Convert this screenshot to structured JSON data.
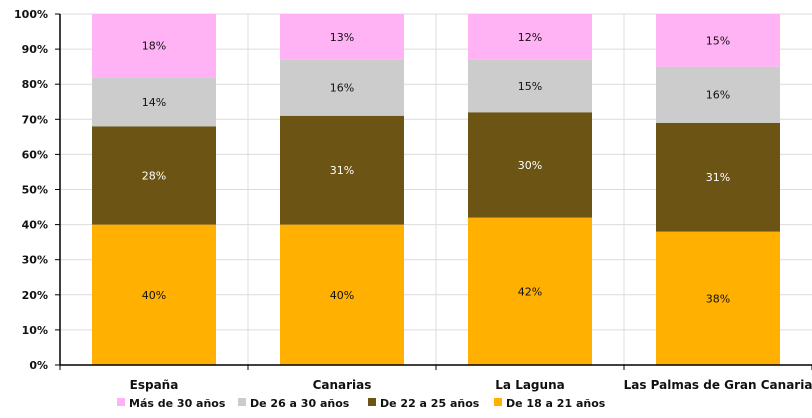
{
  "chart_data": {
    "type": "bar",
    "stacked": true,
    "percent": true,
    "categories": [
      "España",
      "Canarias",
      "La Laguna",
      "Las Palmas de Gran Canaria"
    ],
    "series": [
      {
        "name": "De 18 a 21 años",
        "values": [
          40,
          40,
          42,
          38
        ],
        "labels": [
          "40%",
          "40%",
          "42%",
          "38%"
        ],
        "color": "#FFB000"
      },
      {
        "name": "De 22 a 25 años",
        "values": [
          28,
          31,
          30,
          31
        ],
        "labels": [
          "28%",
          "31%",
          "30%",
          "31%"
        ],
        "color": "#6B5414"
      },
      {
        "name": "De 26 a 30 años",
        "values": [
          14,
          16,
          15,
          16
        ],
        "labels": [
          "14%",
          "16%",
          "15%",
          "16%"
        ],
        "color": "#CCCCCC"
      },
      {
        "name": "Más de 30 años",
        "values": [
          18,
          13,
          12,
          15
        ],
        "labels": [
          "18%",
          "13%",
          "12%",
          "15%"
        ],
        "color": "#FFB3F5"
      }
    ],
    "legend_order": [
      3,
      2,
      1,
      0
    ],
    "ylim": [
      0,
      100
    ],
    "yticks": [
      0,
      10,
      20,
      30,
      40,
      50,
      60,
      70,
      80,
      90,
      100
    ],
    "ytick_labels": [
      "0%",
      "10%",
      "20%",
      "30%",
      "40%",
      "50%",
      "60%",
      "70%",
      "80%",
      "90%",
      "100%"
    ],
    "grid": true,
    "legend_position": "bottom",
    "title": "",
    "xlabel": "",
    "ylabel": ""
  }
}
